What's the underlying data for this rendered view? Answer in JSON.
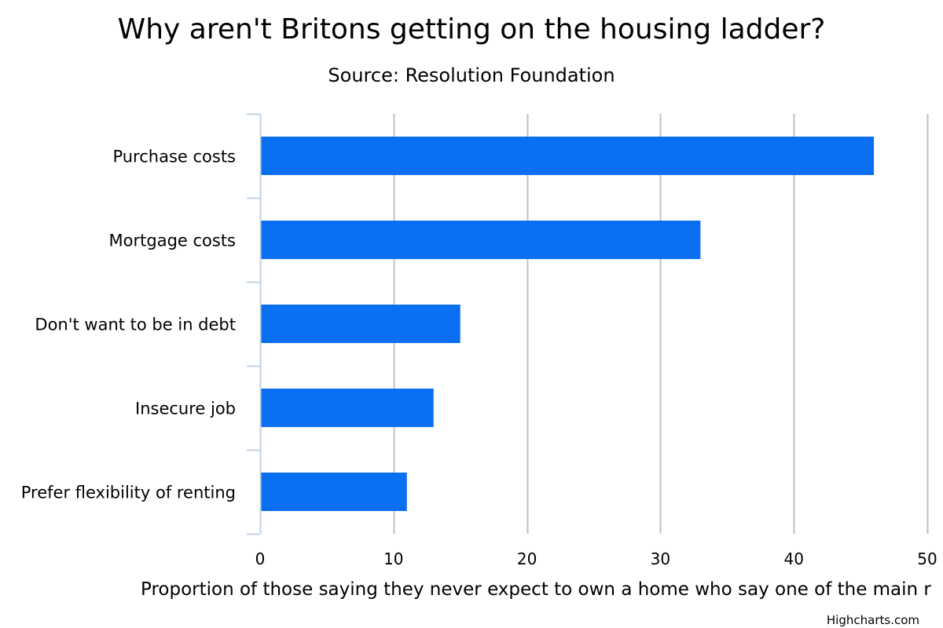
{
  "chart_data": {
    "type": "bar",
    "orientation": "horizontal",
    "title": "Why aren't Britons getting on the housing ladder?",
    "subtitle": "Source: Resolution Foundation",
    "categories": [
      "Purchase costs",
      "Mortgage costs",
      "Don't want to be in debt",
      "Insecure job",
      "Prefer flexibility of renting"
    ],
    "values": [
      46,
      33,
      15,
      13,
      11
    ],
    "xlabel": "",
    "ylabel": "Proportion of those saying they never expect to own a home who say one of the main r",
    "xlim": [
      0,
      50
    ],
    "ticks": [
      0,
      10,
      20,
      30,
      40,
      50
    ],
    "tick_labels": [
      "0",
      "10",
      "20",
      "30",
      "40",
      "50"
    ],
    "grid": true,
    "legend": "none",
    "bar_color": "#0a6ff0",
    "grid_color": "#c0c0c0",
    "axis_color": "#c0d0e0"
  },
  "credits": "Highcharts.com"
}
